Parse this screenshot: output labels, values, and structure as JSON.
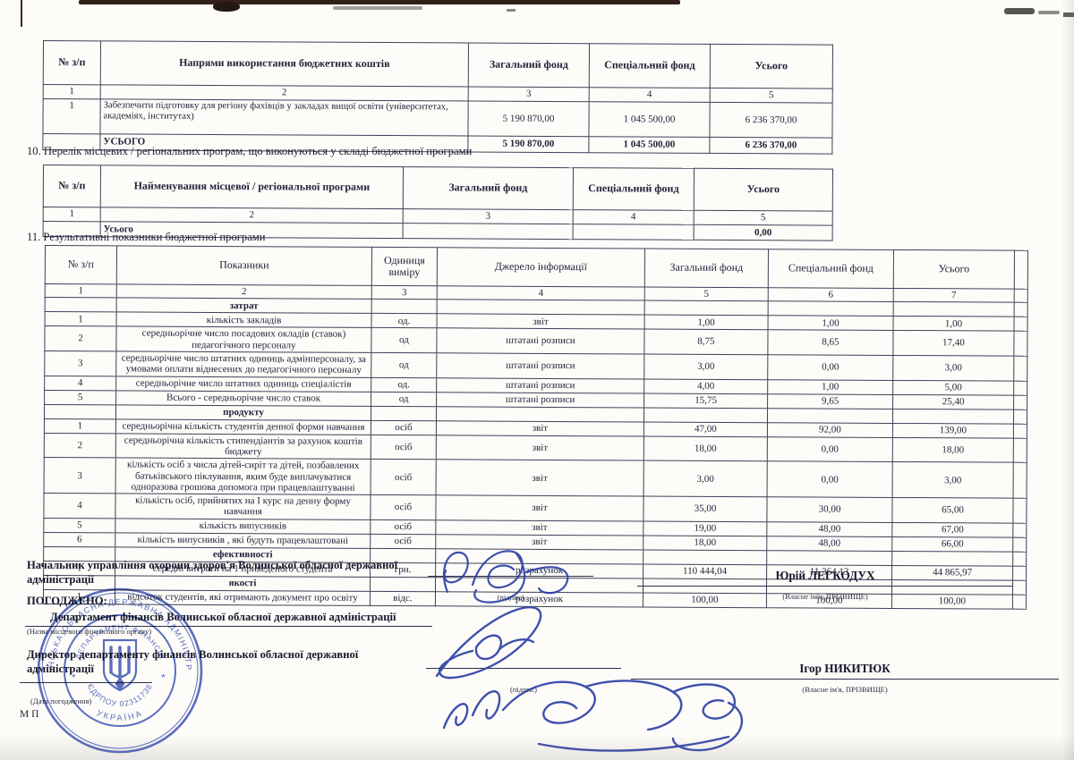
{
  "captions": {
    "s10": "10. Перелік місцевих / регіональних програм, що виконуються у складі бюджетної програми",
    "s11": "11. Результативні показники бюджетної програми"
  },
  "table1": {
    "headers": [
      "№ з/п",
      "Напрями використання бюджетних коштів",
      "Загальний фонд",
      "Спеціальний фонд",
      "Усього"
    ],
    "col_numbers": [
      "1",
      "2",
      "3",
      "4",
      "5"
    ],
    "rows": [
      {
        "num": "1",
        "name": "Забезпечити підготовку для регіону фахівців у закладах вищої освіти (університетах, академіях, інститутах)",
        "general": "5 190 870,00",
        "special": "1 045 500,00",
        "total": "6 236 370,00"
      }
    ],
    "total_label": "УСЬОГО",
    "total": {
      "general": "5 190 870,00",
      "special": "1 045 500,00",
      "total": "6 236 370,00"
    }
  },
  "table2": {
    "headers": [
      "№ з/п",
      "Найменування місцевої / регіональної програми",
      "Загальний фонд",
      "Спеціальний фонд",
      "Усього"
    ],
    "col_numbers": [
      "1",
      "2",
      "3",
      "4",
      "5"
    ],
    "total_label": "Усього",
    "total_value": "0,00"
  },
  "table3": {
    "headers": [
      "№ з/п",
      "Показники",
      "Одиниця виміру",
      "Джерело інформації",
      "Загальний фонд",
      "Спеціальний фонд",
      "Усього"
    ],
    "col_numbers": [
      "1",
      "2",
      "3",
      "4",
      "5",
      "6",
      "7"
    ],
    "groups": [
      {
        "label": "затрат",
        "rows": [
          {
            "num": "1",
            "name": "кількість закладів",
            "unit": "од.",
            "source": "звіт",
            "general": "1,00",
            "special": "1,00",
            "total": "1,00"
          },
          {
            "num": "2",
            "name": "середньорічне число посадових окладів (ставок) педагогічного персоналу",
            "unit": "од",
            "source": "штатані розписи",
            "general": "8,75",
            "special": "8,65",
            "total": "17,40"
          },
          {
            "num": "3",
            "name": "середньорічне число штатних одиниць адмінперсоналу, за умовами оплати віднесених до педагогічного персоналу",
            "unit": "од",
            "source": "штатані розписи",
            "general": "3,00",
            "special": "0,00",
            "total": "3,00"
          },
          {
            "num": "4",
            "name": "середньорічне число штатних одиниць спеціалістів",
            "unit": "од.",
            "source": "штатані розписи",
            "general": "4,00",
            "special": "1,00",
            "total": "5,00"
          },
          {
            "num": "5",
            "name": "Всього - середньорічне число ставок",
            "unit": "од",
            "source": "штатані розписи",
            "general": "15,75",
            "special": "9,65",
            "total": "25,40"
          }
        ]
      },
      {
        "label": "продукту",
        "rows": [
          {
            "num": "1",
            "name": "середньорічна кількість студентів денної форми навчання",
            "unit": "осіб",
            "source": "звіт",
            "general": "47,00",
            "special": "92,00",
            "total": "139,00"
          },
          {
            "num": "2",
            "name": "середньорічна кількість стипендіантів  за рахунок коштів бюджету",
            "unit": "осіб",
            "source": "звіт",
            "general": "18,00",
            "special": "0,00",
            "total": "18,00"
          },
          {
            "num": "3",
            "name": "кількість осіб з числа дітей-сиріт та дітей, позбавлених батьківського піклування, яким буде виплачуватися одноразова грошова допомога при працевлаштуванні",
            "unit": "осіб",
            "source": "звіт",
            "general": "3,00",
            "special": "0,00",
            "total": "3,00"
          },
          {
            "num": "4",
            "name": "кількість осіб, прийнятих на I курс на денну форму навчання",
            "unit": "осіб",
            "source": "звіт",
            "general": "35,00",
            "special": "30,00",
            "total": "65,00"
          },
          {
            "num": "5",
            "name": "кількість випусників",
            "unit": "осіб",
            "source": "звіт",
            "general": "19,00",
            "special": "48,00",
            "total": "67,00"
          },
          {
            "num": "6",
            "name": "кількість випусників , які будуть працевлаштовані",
            "unit": "осіб",
            "source": "звіт",
            "general": "18,00",
            "special": "48,00",
            "total": "66,00"
          }
        ]
      },
      {
        "label": "ефективності",
        "rows": [
          {
            "num": "1",
            "name": "середні витрати на 1 приведеного студента",
            "unit": "грн.",
            "source": "розрахунок",
            "general": "110 444,04",
            "special": "11 364,13",
            "total": "44 865,97"
          }
        ]
      },
      {
        "label": "якості",
        "rows": [
          {
            "num": "1",
            "name": "відсоток студентів, які отримають документ про освіту",
            "unit": "відс.",
            "source": "розрахунок",
            "general": "100,00",
            "special": "100,00",
            "total": "100,00"
          }
        ]
      }
    ]
  },
  "signoff": {
    "approver_title": "Начальник управління охорони здоров'я Волинської обласної державної адміністрації",
    "approver_name": "Юрій ЛЕГКОДУХ",
    "agreed_label": "ПОГОДЖЕНО:",
    "finance_dept": "Департамент фінансів Волинської обласної державної адміністрації",
    "finance_dept_hint": "(Назва місцевого фінансового органу)",
    "director_title": "Директор департаменту фінансів Волинської обласної державної адміністрації",
    "director_name": "Ігор НИКИТЮК",
    "signature_hint": "(підпис)",
    "name_hint": "(Власне ім'я, ПРІЗВИЩЕ)",
    "date_hint": "(Дата погодження)",
    "mp_label": "М П"
  },
  "stamp": {
    "ring_text": "ВОЛИНСЬКА ОБЛАСНА ДЕРЖАВНА АДМІНІСТРАЦІЯ",
    "inner_text": "ДЕПАРТАМЕНТ ФІНАНСІВ",
    "edrpou": "ЄДРПОУ 02311738",
    "country": "УКРАЇНА",
    "color": "#3c52b8"
  },
  "colors": {
    "ink": "#20243a",
    "stamp_blue": "#3c52b8",
    "signature_blue": "#2e41a6"
  }
}
